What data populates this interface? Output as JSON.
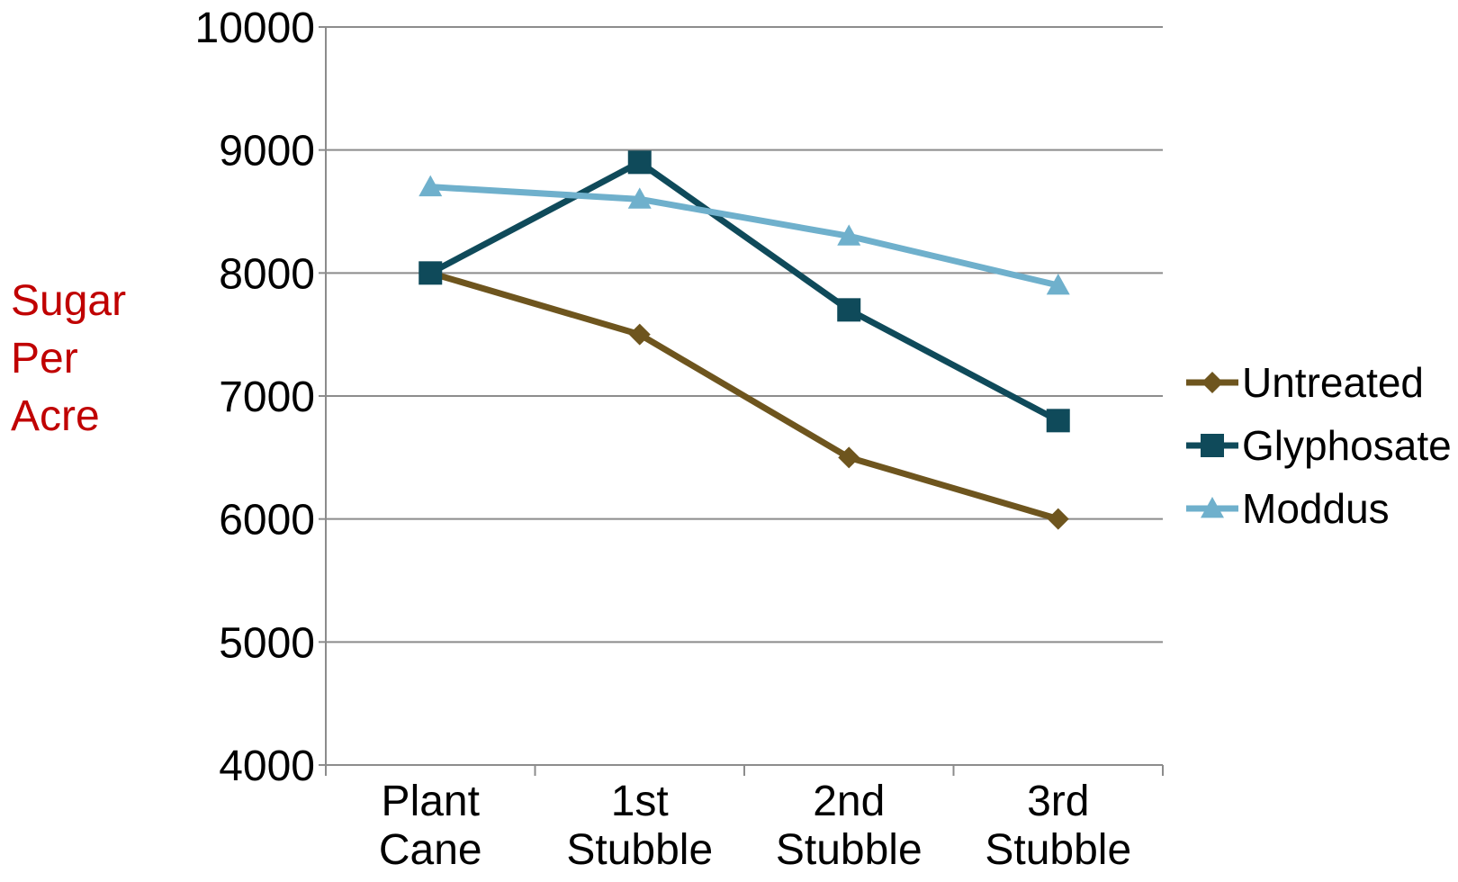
{
  "chart_data": {
    "type": "line",
    "title": "",
    "xlabel": "",
    "ylabel": "Sugar Per Acre",
    "ylabel_lines": [
      "Sugar",
      "Per",
      "Acre"
    ],
    "ylabel_color": "#C00000",
    "categories": [
      "Plant Cane",
      "1st Stubble",
      "2nd Stubble",
      "3rd Stubble"
    ],
    "category_lines": [
      [
        "Plant",
        "Cane"
      ],
      [
        "1st",
        "Stubble"
      ],
      [
        "2nd",
        "Stubble"
      ],
      [
        "3rd",
        "Stubble"
      ]
    ],
    "ylim": [
      4000,
      10000
    ],
    "yticks": [
      4000,
      5000,
      6000,
      7000,
      8000,
      9000,
      10000
    ],
    "grid": true,
    "legend_position": "right",
    "series": [
      {
        "name": "Untreated",
        "values": [
          8000,
          7500,
          6500,
          6000
        ],
        "color": "#6E551E",
        "marker": "diamond"
      },
      {
        "name": "Glyphosate",
        "values": [
          8000,
          8900,
          7700,
          6800
        ],
        "color": "#0F4A5A",
        "marker": "square"
      },
      {
        "name": "Moddus",
        "values": [
          8700,
          8600,
          8300,
          7900
        ],
        "color": "#6FB0CC",
        "marker": "triangle"
      }
    ]
  }
}
